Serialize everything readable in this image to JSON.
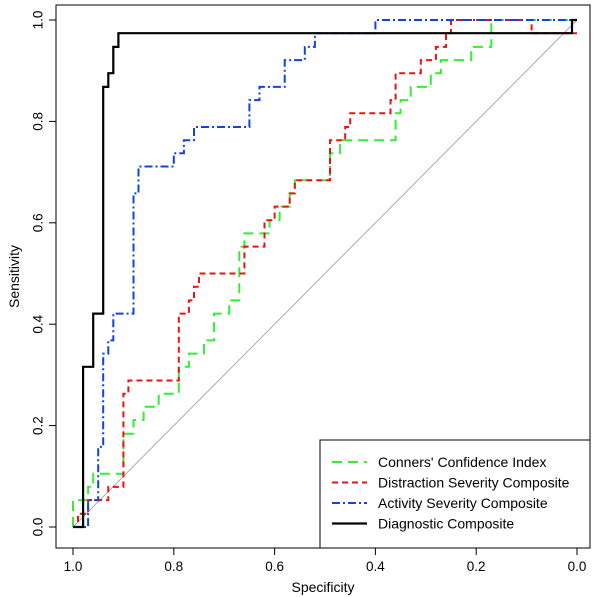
{
  "chart_data": {
    "type": "line",
    "title": "",
    "xlabel": "Specificity",
    "ylabel": "Sensitivity",
    "xlim": [
      1.0,
      0.0
    ],
    "ylim": [
      0.0,
      1.0
    ],
    "xticks": [
      "1.0",
      "0.8",
      "0.6",
      "0.4",
      "0.2",
      "0.0"
    ],
    "xtick_values": [
      1.0,
      0.8,
      0.6,
      0.4,
      0.2,
      0.0
    ],
    "yticks": [
      "0.0",
      "0.2",
      "0.4",
      "0.6",
      "0.8",
      "1.0"
    ],
    "ytick_values": [
      0.0,
      0.2,
      0.4,
      0.6,
      0.8,
      1.0
    ],
    "reference_line": {
      "from": [
        1.0,
        0.0
      ],
      "to": [
        0.0,
        1.0
      ],
      "color": "#aaaaaa"
    },
    "legend_position": "bottom-right",
    "series": [
      {
        "name": "Conners' Confidence Index",
        "color": "#33ee33",
        "dash": "long-dash",
        "points": [
          [
            1.0,
            0.0
          ],
          [
            1.0,
            0.053
          ],
          [
            0.97,
            0.053
          ],
          [
            0.97,
            0.079
          ],
          [
            0.96,
            0.079
          ],
          [
            0.96,
            0.105
          ],
          [
            0.9,
            0.105
          ],
          [
            0.9,
            0.184
          ],
          [
            0.88,
            0.184
          ],
          [
            0.88,
            0.211
          ],
          [
            0.86,
            0.211
          ],
          [
            0.86,
            0.237
          ],
          [
            0.83,
            0.237
          ],
          [
            0.83,
            0.263
          ],
          [
            0.79,
            0.263
          ],
          [
            0.79,
            0.316
          ],
          [
            0.77,
            0.316
          ],
          [
            0.77,
            0.342
          ],
          [
            0.74,
            0.342
          ],
          [
            0.74,
            0.368
          ],
          [
            0.72,
            0.368
          ],
          [
            0.72,
            0.421
          ],
          [
            0.69,
            0.421
          ],
          [
            0.69,
            0.447
          ],
          [
            0.67,
            0.447
          ],
          [
            0.67,
            0.553
          ],
          [
            0.66,
            0.553
          ],
          [
            0.66,
            0.579
          ],
          [
            0.61,
            0.579
          ],
          [
            0.61,
            0.605
          ],
          [
            0.59,
            0.605
          ],
          [
            0.59,
            0.632
          ],
          [
            0.57,
            0.632
          ],
          [
            0.57,
            0.658
          ],
          [
            0.56,
            0.658
          ],
          [
            0.56,
            0.684
          ],
          [
            0.49,
            0.684
          ],
          [
            0.49,
            0.737
          ],
          [
            0.47,
            0.737
          ],
          [
            0.47,
            0.763
          ],
          [
            0.36,
            0.763
          ],
          [
            0.36,
            0.816
          ],
          [
            0.35,
            0.816
          ],
          [
            0.35,
            0.842
          ],
          [
            0.33,
            0.842
          ],
          [
            0.33,
            0.868
          ],
          [
            0.29,
            0.868
          ],
          [
            0.29,
            0.895
          ],
          [
            0.27,
            0.895
          ],
          [
            0.27,
            0.921
          ],
          [
            0.21,
            0.921
          ],
          [
            0.21,
            0.947
          ],
          [
            0.17,
            0.947
          ],
          [
            0.17,
            1.0
          ],
          [
            0.0,
            1.0
          ]
        ]
      },
      {
        "name": "Distraction Severity Composite",
        "color": "#ee1111",
        "dash": "dash",
        "points": [
          [
            1.0,
            0.0
          ],
          [
            0.99,
            0.0
          ],
          [
            0.99,
            0.026
          ],
          [
            0.97,
            0.026
          ],
          [
            0.97,
            0.053
          ],
          [
            0.93,
            0.053
          ],
          [
            0.93,
            0.079
          ],
          [
            0.9,
            0.079
          ],
          [
            0.9,
            0.263
          ],
          [
            0.89,
            0.263
          ],
          [
            0.89,
            0.289
          ],
          [
            0.79,
            0.289
          ],
          [
            0.79,
            0.421
          ],
          [
            0.77,
            0.421
          ],
          [
            0.77,
            0.447
          ],
          [
            0.76,
            0.447
          ],
          [
            0.76,
            0.474
          ],
          [
            0.75,
            0.474
          ],
          [
            0.75,
            0.5
          ],
          [
            0.66,
            0.5
          ],
          [
            0.66,
            0.553
          ],
          [
            0.62,
            0.553
          ],
          [
            0.62,
            0.605
          ],
          [
            0.6,
            0.605
          ],
          [
            0.6,
            0.632
          ],
          [
            0.57,
            0.632
          ],
          [
            0.57,
            0.658
          ],
          [
            0.56,
            0.658
          ],
          [
            0.56,
            0.684
          ],
          [
            0.49,
            0.684
          ],
          [
            0.49,
            0.763
          ],
          [
            0.46,
            0.763
          ],
          [
            0.46,
            0.789
          ],
          [
            0.45,
            0.789
          ],
          [
            0.45,
            0.816
          ],
          [
            0.37,
            0.816
          ],
          [
            0.37,
            0.842
          ],
          [
            0.36,
            0.842
          ],
          [
            0.36,
            0.895
          ],
          [
            0.31,
            0.895
          ],
          [
            0.31,
            0.921
          ],
          [
            0.28,
            0.921
          ],
          [
            0.28,
            0.947
          ],
          [
            0.26,
            0.947
          ],
          [
            0.26,
            0.974
          ],
          [
            0.25,
            0.974
          ],
          [
            0.25,
            1.0
          ],
          [
            0.09,
            1.0
          ],
          [
            0.09,
            0.974
          ],
          [
            0.0,
            0.974
          ]
        ]
      },
      {
        "name": "Activity Severity Composite",
        "color": "#1144dd",
        "dash": "dash-dot",
        "points": [
          [
            1.0,
            0.0
          ],
          [
            0.97,
            0.0
          ],
          [
            0.97,
            0.053
          ],
          [
            0.95,
            0.053
          ],
          [
            0.95,
            0.158
          ],
          [
            0.94,
            0.158
          ],
          [
            0.94,
            0.342
          ],
          [
            0.93,
            0.342
          ],
          [
            0.93,
            0.368
          ],
          [
            0.92,
            0.368
          ],
          [
            0.92,
            0.421
          ],
          [
            0.88,
            0.421
          ],
          [
            0.88,
            0.658
          ],
          [
            0.87,
            0.658
          ],
          [
            0.87,
            0.711
          ],
          [
            0.8,
            0.711
          ],
          [
            0.8,
            0.737
          ],
          [
            0.78,
            0.737
          ],
          [
            0.78,
            0.763
          ],
          [
            0.76,
            0.763
          ],
          [
            0.76,
            0.789
          ],
          [
            0.65,
            0.789
          ],
          [
            0.65,
            0.842
          ],
          [
            0.63,
            0.842
          ],
          [
            0.63,
            0.868
          ],
          [
            0.58,
            0.868
          ],
          [
            0.58,
            0.921
          ],
          [
            0.54,
            0.921
          ],
          [
            0.54,
            0.947
          ],
          [
            0.52,
            0.947
          ],
          [
            0.52,
            0.974
          ],
          [
            0.4,
            0.974
          ],
          [
            0.4,
            1.0
          ],
          [
            0.0,
            1.0
          ]
        ]
      },
      {
        "name": "Diagnostic Composite",
        "color": "#000000",
        "dash": "solid",
        "points": [
          [
            1.0,
            0.0
          ],
          [
            0.98,
            0.0
          ],
          [
            0.98,
            0.316
          ],
          [
            0.96,
            0.316
          ],
          [
            0.96,
            0.421
          ],
          [
            0.94,
            0.421
          ],
          [
            0.94,
            0.868
          ],
          [
            0.93,
            0.868
          ],
          [
            0.93,
            0.895
          ],
          [
            0.92,
            0.895
          ],
          [
            0.92,
            0.947
          ],
          [
            0.91,
            0.947
          ],
          [
            0.91,
            0.974
          ],
          [
            0.01,
            0.974
          ],
          [
            0.01,
            1.0
          ],
          [
            0.0,
            1.0
          ]
        ]
      }
    ]
  }
}
